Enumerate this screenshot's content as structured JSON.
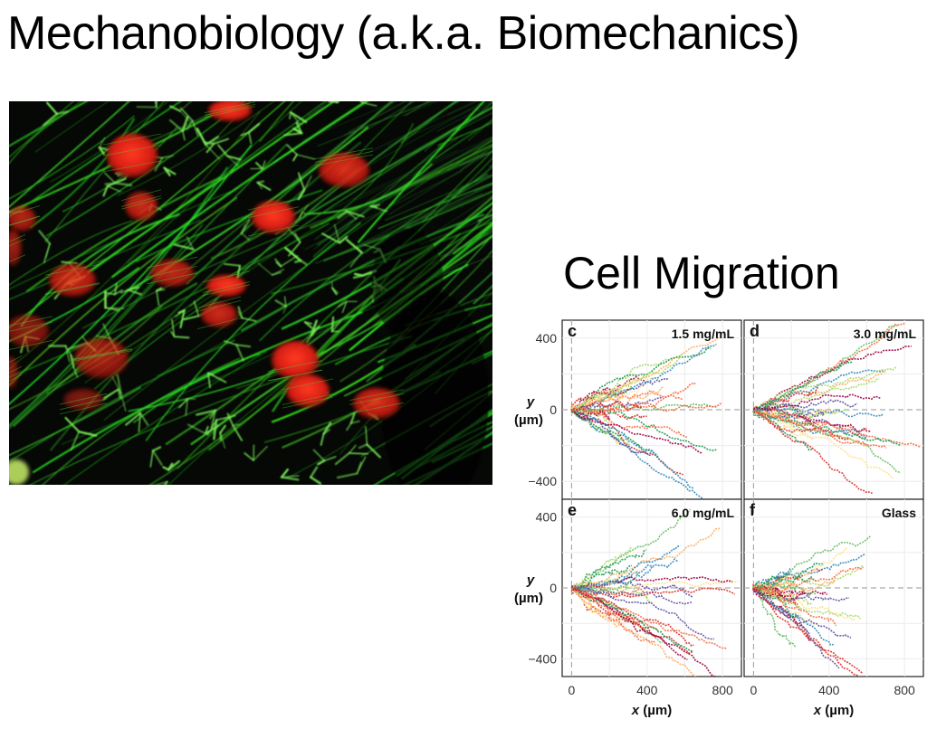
{
  "slide": {
    "title": "Mechanobiology (a.k.a. Biomechanics)"
  },
  "micrograph": {
    "alt_semantic": "fluorescence-micrograph-actin-nuclei",
    "colors": {
      "actin": "#2fd82a",
      "nuclei": "#e8261c",
      "background": "#050805"
    }
  },
  "section": {
    "title": "Cell Migration"
  },
  "chart_data": {
    "type": "line",
    "panels": [
      {
        "letter": "c",
        "condition": "1.5 mg/mL"
      },
      {
        "letter": "d",
        "condition": "3.0 mg/mL"
      },
      {
        "letter": "e",
        "condition": "6.0 mg/mL"
      },
      {
        "letter": "f",
        "condition": "Glass"
      }
    ],
    "xlabel_italic": "x",
    "xlabel_unit": " (µm)",
    "ylabel_italic": "y",
    "ylabel_unit": "(µm)",
    "xlim": [
      -50,
      900
    ],
    "ylim": [
      -500,
      500
    ],
    "xticks": [
      "0",
      "400",
      "800"
    ],
    "yticks": [
      "400",
      "0",
      "−400"
    ],
    "grid": true,
    "trajectory_colors": [
      "#d73027",
      "#f46d43",
      "#fdae61",
      "#fee08b",
      "#a6d96a",
      "#66bd63",
      "#1a9850",
      "#3288bd",
      "#5e4fa2",
      "#9e0142"
    ]
  }
}
